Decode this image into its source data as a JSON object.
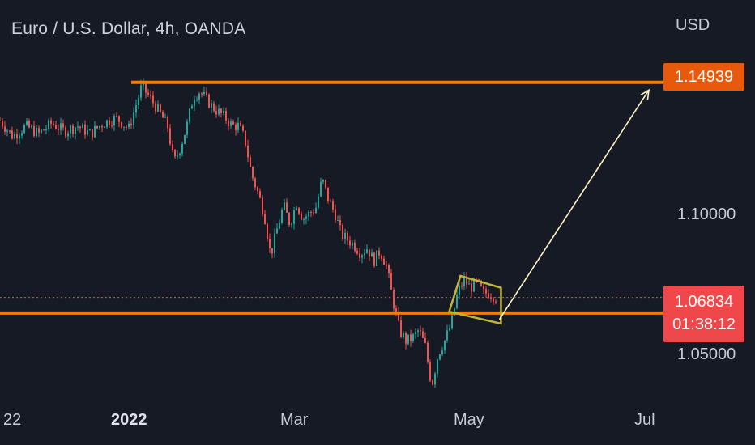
{
  "header": {
    "title": "Euro / U.S. Dollar, 4h, OANDA",
    "currency": "USD"
  },
  "colors": {
    "background": "#161a25",
    "up": "#26a69a",
    "down": "#ef5350",
    "level_lines": "#f57c00",
    "target_label": "#e8590c",
    "current_label": "#f0484a",
    "pattern": "#c0b63a",
    "arrow": "#fff3c4"
  },
  "chart_data": {
    "type": "candlestick",
    "title": "Euro / U.S. Dollar, 4h, OANDA",
    "ylabel": "USD",
    "ylim": [
      1.028,
      1.167
    ],
    "x_ticks": [
      "22",
      "2022",
      "Mar",
      "May",
      "Jul"
    ],
    "y_ticks": [
      "1.10000",
      "1.05000"
    ],
    "grid": false,
    "price_path": [
      [
        0.0,
        1.135
      ],
      [
        0.02,
        1.129
      ],
      [
        0.04,
        1.133
      ],
      [
        0.06,
        1.13
      ],
      [
        0.08,
        1.134
      ],
      [
        0.1,
        1.131
      ],
      [
        0.12,
        1.133
      ],
      [
        0.14,
        1.13
      ],
      [
        0.16,
        1.134
      ],
      [
        0.18,
        1.136
      ],
      [
        0.2,
        1.132
      ],
      [
        0.21,
        1.14
      ],
      [
        0.22,
        1.148
      ],
      [
        0.24,
        1.141
      ],
      [
        0.26,
        1.133
      ],
      [
        0.27,
        1.119
      ],
      [
        0.28,
        1.125
      ],
      [
        0.29,
        1.133
      ],
      [
        0.3,
        1.144
      ],
      [
        0.31,
        1.146
      ],
      [
        0.33,
        1.14
      ],
      [
        0.35,
        1.136
      ],
      [
        0.36,
        1.133
      ],
      [
        0.37,
        1.133
      ],
      [
        0.38,
        1.128
      ],
      [
        0.39,
        1.115
      ],
      [
        0.4,
        1.108
      ],
      [
        0.41,
        1.1
      ],
      [
        0.42,
        1.084
      ],
      [
        0.43,
        1.094
      ],
      [
        0.44,
        1.103
      ],
      [
        0.45,
        1.096
      ],
      [
        0.46,
        1.104
      ],
      [
        0.47,
        1.098
      ],
      [
        0.48,
        1.1
      ],
      [
        0.49,
        1.102
      ],
      [
        0.5,
        1.113
      ],
      [
        0.51,
        1.105
      ],
      [
        0.52,
        1.1
      ],
      [
        0.53,
        1.092
      ],
      [
        0.54,
        1.09
      ],
      [
        0.55,
        1.088
      ],
      [
        0.56,
        1.085
      ],
      [
        0.57,
        1.087
      ],
      [
        0.58,
        1.082
      ],
      [
        0.59,
        1.086
      ],
      [
        0.6,
        1.08
      ],
      [
        0.61,
        1.067
      ],
      [
        0.62,
        1.056
      ],
      [
        0.63,
        1.052
      ],
      [
        0.64,
        1.053
      ],
      [
        0.65,
        1.056
      ],
      [
        0.66,
        1.05
      ],
      [
        0.67,
        1.035
      ],
      [
        0.68,
        1.047
      ],
      [
        0.69,
        1.052
      ],
      [
        0.7,
        1.058
      ],
      [
        0.71,
        1.07
      ],
      [
        0.72,
        1.075
      ],
      [
        0.73,
        1.072
      ],
      [
        0.74,
        1.074
      ],
      [
        0.75,
        1.07
      ],
      [
        0.76,
        1.07
      ],
      [
        0.77,
        1.06834
      ]
    ],
    "levels": {
      "resistance": 1.1494,
      "support": 1.0625,
      "current": 1.06834
    },
    "target_label": "1.14939",
    "current_label": "1.06834",
    "countdown": "01:38:12",
    "projection_arrow": {
      "from": 1.0625,
      "to": 1.1465
    }
  }
}
